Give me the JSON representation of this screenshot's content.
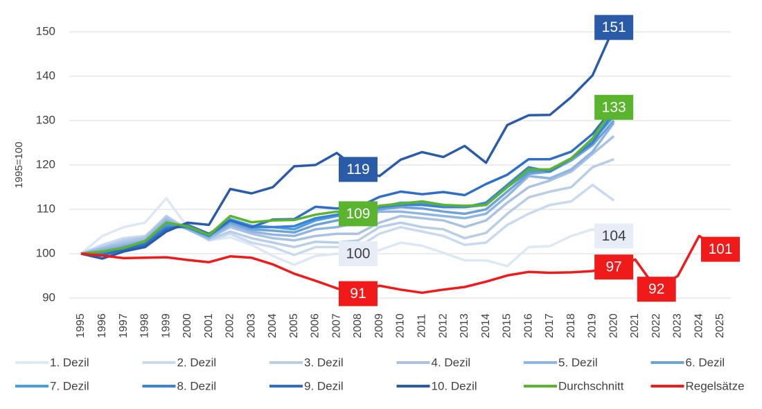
{
  "chart_data": {
    "type": "line",
    "y_label": "1995=100",
    "categories": [
      "1995",
      "1996",
      "1997",
      "1998",
      "1999",
      "2000",
      "2001",
      "2002",
      "2003",
      "2004",
      "2005",
      "2006",
      "2007",
      "2008",
      "2009",
      "2010",
      "2011",
      "2012",
      "2013",
      "2014",
      "2015",
      "2016",
      "2017",
      "2018",
      "2019",
      "2020",
      "2021",
      "2022",
      "2023",
      "2024",
      "2025"
    ],
    "ylim": [
      90,
      150
    ],
    "yticks": [
      90,
      100,
      110,
      120,
      130,
      140,
      150
    ],
    "grid": true,
    "series": [
      {
        "name": "1. Dezil",
        "color": "#dde8f5",
        "values": [
          100,
          104,
          106,
          107,
          112.5,
          106,
          103,
          103.7,
          102,
          99.5,
          97.5,
          99.5,
          100,
          100,
          100.8,
          102.5,
          101.8,
          100.2,
          98.5,
          98.5,
          97.2,
          101.5,
          101.7,
          104,
          105.5,
          104,
          null,
          null,
          null,
          null,
          null
        ],
        "value_labels": [
          null,
          null,
          null,
          null,
          null,
          null,
          null,
          null,
          null,
          null,
          null,
          null,
          null,
          "100",
          null,
          null,
          null,
          null,
          null,
          null,
          null,
          null,
          null,
          null,
          null,
          "104",
          null,
          null,
          null,
          null,
          null
        ]
      },
      {
        "name": "2. Dezil",
        "color": "#c9daf0",
        "values": [
          100,
          102,
          103.5,
          104,
          108,
          106,
          103,
          104.5,
          102.5,
          101.5,
          99.7,
          101.5,
          101.5,
          101.5,
          104.5,
          106,
          105,
          104,
          102,
          102.5,
          106.5,
          109,
          111,
          111.8,
          115.5,
          112,
          null,
          null,
          null,
          null,
          null
        ]
      },
      {
        "name": "3. Dezil",
        "color": "#b8cde6",
        "values": [
          100,
          101.5,
          103,
          103.8,
          108.5,
          105.5,
          103.2,
          105,
          103.5,
          102.5,
          101.5,
          102.7,
          102.5,
          103,
          106,
          107,
          106,
          105.5,
          103.5,
          104.7,
          109,
          112.7,
          114,
          115,
          119.5,
          121.3,
          null,
          null,
          null,
          null,
          null
        ]
      },
      {
        "name": "4. Dezil",
        "color": "#a9c2e2",
        "values": [
          100,
          101.3,
          102.5,
          103.5,
          108,
          105.5,
          103.5,
          106,
          104.5,
          103.5,
          103,
          104,
          104.5,
          104.5,
          107,
          108.5,
          108,
          107.5,
          106,
          107.5,
          111.5,
          115,
          116.5,
          118.5,
          122.5,
          126.5,
          null,
          null,
          null,
          null,
          null
        ]
      },
      {
        "name": "5. Dezil",
        "color": "#8fb5e3",
        "values": [
          100,
          101,
          102,
          103,
          107.5,
          105.5,
          103.5,
          106.5,
          105,
          104.3,
          104,
          105.5,
          106,
          107,
          109.5,
          109.5,
          109,
          108.5,
          108,
          109,
          113,
          117.5,
          117,
          119,
          123,
          129.5,
          null,
          null,
          null,
          null,
          null
        ]
      },
      {
        "name": "6. Dezil",
        "color": "#6fa3d6",
        "values": [
          100,
          100.5,
          101.5,
          102.8,
          107,
          105.8,
          104,
          107,
          105.5,
          105.2,
          104.8,
          106.5,
          107.5,
          108,
          110,
          110.5,
          110.2,
          109.5,
          109,
          110,
          114,
          118,
          118.5,
          121,
          124.5,
          130,
          null,
          null,
          null,
          null,
          null
        ]
      },
      {
        "name": "7. Dezil",
        "color": "#4a9de0",
        "values": [
          100,
          100.3,
          101.2,
          102.6,
          106.5,
          106,
          104,
          107.8,
          106.3,
          106,
          105.5,
          107.5,
          108.5,
          109,
          110.5,
          111.5,
          111.5,
          111,
          110.5,
          111,
          115,
          118.5,
          119,
          121.5,
          125.5,
          131,
          null,
          null,
          null,
          null,
          null
        ]
      },
      {
        "name": "8. Dezil",
        "color": "#3a84d3",
        "values": [
          100,
          100,
          101,
          102.5,
          106,
          106,
          104,
          107.5,
          106,
          106,
          106.2,
          108,
          108.8,
          109.5,
          110.5,
          111,
          111,
          110.5,
          110.5,
          111.5,
          115.5,
          119.5,
          118.5,
          121.5,
          125,
          132,
          null,
          null,
          null,
          null,
          null
        ]
      },
      {
        "name": "9. Dezil",
        "color": "#2e6ec8",
        "values": [
          100,
          99.6,
          101,
          102,
          105.5,
          106.5,
          104.5,
          107.5,
          106,
          107.7,
          107.8,
          110.6,
          110.2,
          110.5,
          112.8,
          114,
          113.4,
          113.9,
          113.2,
          115.7,
          117.8,
          121.3,
          121.3,
          123,
          127,
          133,
          null,
          null,
          null,
          null,
          null
        ]
      },
      {
        "name": "10. Dezil",
        "color": "#2a5ba8",
        "values": [
          100,
          98.9,
          100.5,
          101.5,
          105,
          107,
          106.5,
          114.6,
          113.6,
          115,
          119.7,
          120,
          122.7,
          119,
          117.5,
          121.2,
          122.9,
          121.8,
          124.3,
          120.5,
          129,
          131.2,
          131.3,
          135.3,
          140.2,
          151,
          null,
          null,
          null,
          null,
          null
        ],
        "value_labels": [
          null,
          null,
          null,
          null,
          null,
          null,
          null,
          null,
          null,
          null,
          null,
          null,
          null,
          "119",
          null,
          null,
          null,
          null,
          null,
          null,
          null,
          null,
          null,
          null,
          null,
          "151",
          null,
          null,
          null,
          null,
          null
        ]
      },
      {
        "name": "Durchschnitt",
        "color": "#5ab42e",
        "values": [
          100,
          100.5,
          101.3,
          102.8,
          107,
          106.2,
          104.2,
          108.5,
          107.1,
          107.5,
          107.6,
          108.8,
          109.5,
          109,
          110.8,
          111.3,
          111.8,
          111,
          110.8,
          111,
          115,
          119,
          119,
          121.5,
          126,
          133,
          null,
          null,
          null,
          null,
          null
        ],
        "value_labels": [
          null,
          null,
          null,
          null,
          null,
          null,
          null,
          null,
          null,
          null,
          null,
          null,
          null,
          "109",
          null,
          null,
          null,
          null,
          null,
          null,
          null,
          null,
          null,
          null,
          null,
          "133",
          null,
          null,
          null,
          null,
          null
        ]
      },
      {
        "name": "Regelsätze",
        "color": "#f01a1a",
        "values": [
          100,
          99.6,
          99,
          99.1,
          99.2,
          98.6,
          98.1,
          99.4,
          99.1,
          97.6,
          95.5,
          93.9,
          92.2,
          91,
          92.8,
          91.9,
          91.2,
          91.9,
          92.5,
          93.7,
          95.1,
          95.9,
          95.7,
          95.8,
          96.1,
          97,
          98.7,
          92,
          95,
          104,
          101
        ],
        "value_labels": [
          null,
          null,
          null,
          null,
          null,
          null,
          null,
          null,
          null,
          null,
          null,
          null,
          null,
          "91",
          null,
          null,
          null,
          null,
          null,
          null,
          null,
          null,
          null,
          null,
          null,
          "97",
          null,
          "92",
          null,
          null,
          "101"
        ]
      }
    ]
  }
}
